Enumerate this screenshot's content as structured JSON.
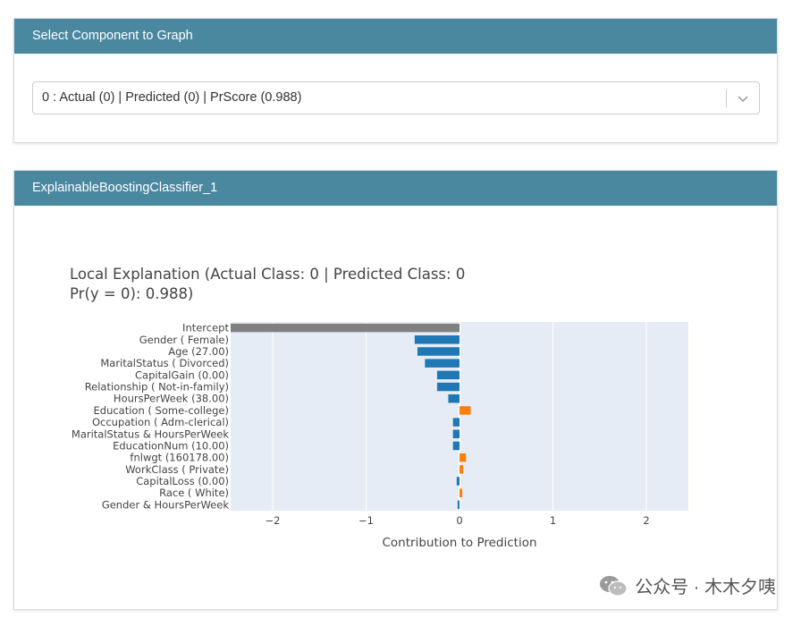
{
  "select_panel": {
    "header": "Select Component to Graph",
    "selected_value": "0 : Actual (0) | Predicted (0) | PrScore (0.988)"
  },
  "graph_panel": {
    "header": "ExplainableBoostingClassifier_1"
  },
  "chart_data": {
    "type": "bar",
    "orientation": "horizontal",
    "title_line1": "Local Explanation (Actual Class: 0 | Predicted Class: 0",
    "title_line2": "Pr(y = 0): 0.988)",
    "xlabel": "Contribution to Prediction",
    "ylabel": "",
    "xlim": [
      -2.45,
      2.45
    ],
    "xticks": [
      -2,
      -1,
      0,
      1,
      2
    ],
    "xtick_labels": [
      "−2",
      "−1",
      "0",
      "1",
      "2"
    ],
    "grid": true,
    "background": "#e5ecf6",
    "colors": {
      "intercept": "#808080",
      "negative": "#1f77b4",
      "positive": "#ff7f0e"
    },
    "categories": [
      "Intercept",
      "Gender ( Female)",
      "Age (27.00)",
      "MaritalStatus ( Divorced)",
      "CapitalGain (0.00)",
      "Relationship ( Not-in-family)",
      "HoursPerWeek (38.00)",
      "Education ( Some-college)",
      "Occupation ( Adm-clerical)",
      "MaritalStatus & HoursPerWeek",
      "EducationNum (10.00)",
      "fnlwgt (160178.00)",
      "WorkClass ( Private)",
      "CapitalLoss (0.00)",
      "Race ( White)",
      "Gender & HoursPerWeek"
    ],
    "values": [
      -2.45,
      -0.48,
      -0.45,
      -0.37,
      -0.24,
      -0.24,
      -0.12,
      0.12,
      -0.07,
      -0.07,
      -0.07,
      0.07,
      0.04,
      -0.03,
      0.03,
      -0.02
    ]
  },
  "watermark": {
    "text": "公众号 · 木木夕咦"
  }
}
